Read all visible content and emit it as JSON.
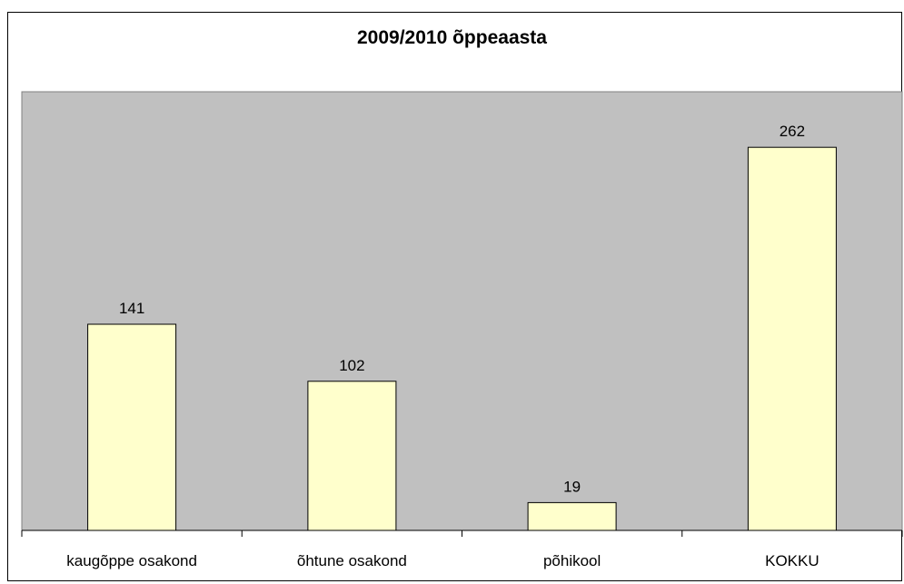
{
  "chart_data": {
    "type": "bar",
    "title": "2009/2010 õppeaasta",
    "categories": [
      "kaugõppe osakond",
      "õhtune osakond",
      "põhikool",
      "KOKKU"
    ],
    "values": [
      141,
      102,
      19,
      262
    ],
    "data_labels": [
      "141",
      "102",
      "19",
      "262"
    ],
    "xlabel": "",
    "ylabel": "",
    "ylim": [
      0,
      300
    ],
    "grid": false,
    "legend": "none",
    "colors": {
      "plot_background": "#c0c0c0",
      "bar_fill": "#ffffcc",
      "bar_stroke": "#000000",
      "axis": "#000000",
      "text": "#000000"
    }
  }
}
